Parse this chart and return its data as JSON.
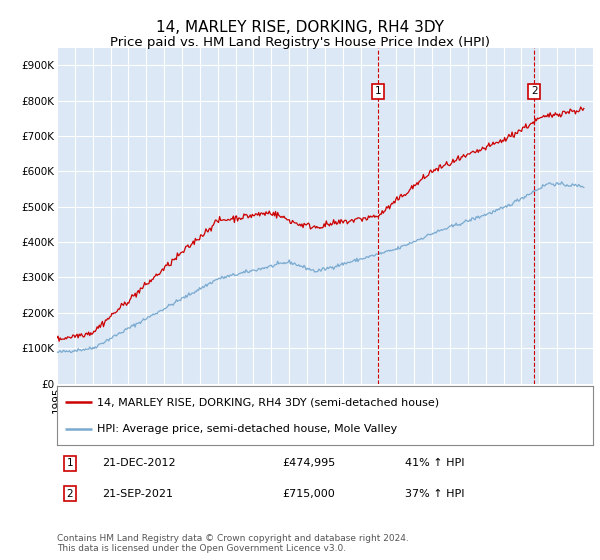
{
  "title": "14, MARLEY RISE, DORKING, RH4 3DY",
  "subtitle": "Price paid vs. HM Land Registry's House Price Index (HPI)",
  "ylim": [
    0,
    950000
  ],
  "yticks": [
    0,
    100000,
    200000,
    300000,
    400000,
    500000,
    600000,
    700000,
    800000,
    900000
  ],
  "ytick_labels": [
    "£0",
    "£100K",
    "£200K",
    "£300K",
    "£400K",
    "£500K",
    "£600K",
    "£700K",
    "£800K",
    "£900K"
  ],
  "plot_bg": "#dce8f5",
  "grid_color": "#ffffff",
  "red_color": "#cc0000",
  "blue_color": "#7aaad0",
  "title_fontsize": 11,
  "subtitle_fontsize": 9.5,
  "tick_fontsize": 7.5,
  "legend_fontsize": 8,
  "note_fontsize": 6.5,
  "marker1_x": 2012.97,
  "marker2_x": 2021.72,
  "marker1_label": "21-DEC-2012",
  "marker1_price": "£474,995",
  "marker1_hpi": "41% ↑ HPI",
  "marker2_label": "21-SEP-2021",
  "marker2_price": "£715,000",
  "marker2_hpi": "37% ↑ HPI",
  "legend_line1": "14, MARLEY RISE, DORKING, RH4 3DY (semi-detached house)",
  "legend_line2": "HPI: Average price, semi-detached house, Mole Valley",
  "note": "Contains HM Land Registry data © Crown copyright and database right 2024.\nThis data is licensed under the Open Government Licence v3.0.",
  "xmin": 1995.0,
  "xmax": 2025.0
}
